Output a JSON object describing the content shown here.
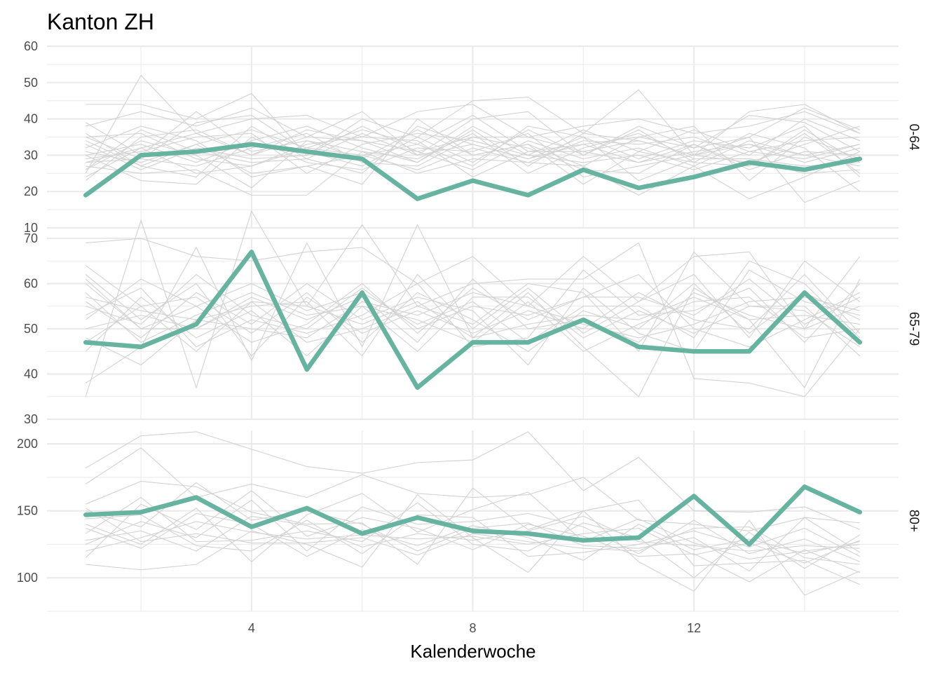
{
  "chart_data": {
    "type": "line",
    "title": "Kanton ZH",
    "xlabel": "Kalenderwoche",
    "ylabel": "",
    "x_ticks": [
      "4",
      "8",
      "12"
    ],
    "x": [
      1,
      2,
      3,
      4,
      5,
      6,
      7,
      8,
      9,
      10,
      11,
      12,
      13,
      14,
      15
    ],
    "xlim": [
      0.3,
      15.7
    ],
    "highlight_color": "#66b3a0",
    "background_color": "#d2d2d2",
    "grid": true,
    "legend": "none",
    "panels": [
      {
        "strip_label": "0-64",
        "ylim": [
          10,
          60
        ],
        "y_ticks": [
          "10",
          "20",
          "30",
          "40",
          "50",
          "60"
        ],
        "series": [
          {
            "values": [
              19,
              30,
              31,
              33,
              31,
              29,
              18,
              23,
              19,
              26,
              21,
              24,
              28,
              26,
              29
            ]
          }
        ],
        "background_series": [
          {
            "values": [
              44,
              44,
              40,
              47,
              30,
              40,
              35,
              45,
              46,
              36,
              48,
              30,
              42,
              44,
              36
            ]
          },
          {
            "values": [
              25,
              52,
              36,
              40,
              41,
              35,
              42,
              44,
              35,
              38,
              40,
              36,
              38,
              42,
              36
            ]
          },
          {
            "values": [
              38,
              42,
              38,
              43,
              35,
              42,
              30,
              40,
              42,
              30,
              38,
              32,
              35,
              43,
              37
            ]
          },
          {
            "values": [
              31,
              28,
              33,
              25,
              27,
              22,
              40,
              30,
              33,
              22,
              31,
              28,
              27,
              36,
              25
            ]
          },
          {
            "values": [
              27,
              25,
              26,
              19,
              19,
              31,
              25,
              29,
              28,
              27,
              19,
              27,
              18,
              24,
              31
            ]
          },
          {
            "values": [
              23,
              35,
              37,
              30,
              37,
              34,
              28,
              37,
              27,
              36,
              34,
              30,
              35,
              17,
              23
            ]
          },
          {
            "values": [
              36,
              27,
              24,
              38,
              29,
              25,
              38,
              33,
              29,
              33,
              35,
              38,
              23,
              35,
              29
            ]
          },
          {
            "values": [
              35,
              36,
              29,
              27,
              32,
              37,
              33,
              27,
              38,
              35,
              29,
              34,
              32,
              38,
              24
            ]
          },
          {
            "values": [
              29,
              31,
              35,
              36,
              25,
              33,
              36,
              34,
              30,
              28,
              30,
              26,
              31,
              29,
              33
            ]
          },
          {
            "values": [
              30,
              23,
              22,
              35,
              28,
              26,
              32,
              31,
              36,
              24,
              27,
              30,
              28,
              33,
              38
            ]
          },
          {
            "values": [
              26,
              34,
              30,
              21,
              34,
              31,
              29,
              36,
              25,
              32,
              36,
              29,
              29,
              27,
              28
            ]
          },
          {
            "values": [
              28,
              29,
              27,
              32,
              36,
              28,
              27,
              35,
              32,
              26,
              25,
              33,
              26,
              31,
              30
            ]
          },
          {
            "values": [
              33,
              26,
              32,
              29,
              30,
              38,
              31,
              26,
              34,
              29,
              32,
              27,
              34,
              30,
              27
            ]
          },
          {
            "values": [
              24,
              32,
              25,
              27,
              33,
              35,
              34,
              24,
              31,
              31,
              28,
              31,
              33,
              28,
              32
            ]
          },
          {
            "values": [
              32,
              38,
              34,
              24,
              27,
              30,
              26,
              32,
              28,
              34,
              33,
              35,
              30,
              40,
              34
            ]
          },
          {
            "values": [
              35,
              29,
              39,
              41,
              31,
              27,
              35,
              28,
              37,
              30,
              37,
              28,
              36,
              32,
              20
            ]
          },
          {
            "values": [
              30,
              33,
              28,
              34,
              38,
              32,
              28,
              38,
              30,
              37,
              31,
              37,
              31,
              34,
              35
            ]
          },
          {
            "values": [
              39,
              30,
              42,
              31,
              34,
              29,
              37,
              30,
              33,
              27,
              35,
              32,
              41,
              39,
              31
            ]
          },
          {
            "values": [
              26,
              37,
              31,
              28,
              29,
              36,
              30,
              33,
              29,
              35,
              23,
              29,
              29,
              25,
              26
            ]
          },
          {
            "values": [
              34,
              27,
              33,
              37,
              32,
              30,
              33,
              41,
              31,
              33,
              28,
              33,
              27,
              37,
              28
            ]
          },
          {
            "values": [
              28,
              32,
              36,
              30,
              35,
              34,
              31,
              35,
              35,
              31,
              34,
              30,
              33,
              30,
              33
            ]
          }
        ]
      },
      {
        "strip_label": "65-79",
        "ylim": [
          30,
          70
        ],
        "y_ticks": [
          "30",
          "40",
          "50",
          "60",
          "70"
        ],
        "series": [
          {
            "values": [
              47,
              46,
              51,
              67,
              41,
              58,
              37,
              47,
              47,
              52,
              46,
              45,
              45,
              58,
              47
            ]
          }
        ],
        "background_series": [
          {
            "values": [
              69,
              70,
              66,
              65,
              67,
              68,
              60,
              66,
              55,
              66,
              56,
              66,
              67,
              50,
              66
            ]
          },
          {
            "values": [
              35,
              74,
              37,
              76,
              55,
              73,
              55,
              60,
              61,
              61,
              69,
              39,
              38,
              35,
              50
            ]
          },
          {
            "values": [
              38,
              46,
              68,
              43,
              69,
              46,
              73,
              48,
              58,
              46,
              35,
              59,
              52,
              37,
              61
            ]
          },
          {
            "values": [
              64,
              55,
              45,
              56,
              47,
              50,
              55,
              51,
              60,
              58,
              45,
              67,
              55,
              55,
              44
            ]
          },
          {
            "values": [
              52,
              61,
              55,
              60,
              54,
              58,
              51,
              56,
              47,
              55,
              55,
              48,
              65,
              60,
              48
            ]
          },
          {
            "values": [
              48,
              42,
              52,
              55,
              56,
              44,
              62,
              50,
              59,
              49,
              56,
              62,
              48,
              65,
              56
            ]
          },
          {
            "values": [
              60,
              50,
              55,
              47,
              51,
              60,
              49,
              59,
              52,
              57,
              62,
              50,
              46,
              52,
              58
            ]
          },
          {
            "values": [
              45,
              57,
              48,
              54,
              44,
              55,
              52,
              47,
              56,
              45,
              51,
              56,
              57,
              48,
              50
            ]
          },
          {
            "values": [
              56,
              48,
              58,
              51,
              60,
              52,
              57,
              54,
              42,
              59,
              49,
              45,
              63,
              56,
              53
            ]
          },
          {
            "values": [
              50,
              53,
              50,
              57,
              52,
              57,
              47,
              61,
              50,
              52,
              47,
              58,
              53,
              50,
              55
            ]
          },
          {
            "values": [
              62,
              52,
              60,
              44,
              57,
              49,
              54,
              49,
              54,
              50,
              58,
              52,
              50,
              62,
              49
            ]
          },
          {
            "values": [
              53,
              59,
              46,
              52,
              49,
              53,
              60,
              46,
              48,
              63,
              53,
              54,
              59,
              47,
              60
            ]
          },
          {
            "values": [
              58,
              47,
              53,
              58,
              53,
              55,
              45,
              57,
              57,
              48,
              54,
              49,
              55,
              54,
              46
            ]
          },
          {
            "values": [
              47,
              55,
              57,
              49,
              58,
              47,
              58,
              52,
              45,
              54,
              50,
              60,
              49,
              58,
              52
            ]
          },
          {
            "values": [
              55,
              51,
              62,
              53,
              50,
              59,
              50,
              55,
              53,
              57,
              57,
              53,
              61,
              51,
              57
            ]
          },
          {
            "values": [
              61,
              50,
              50,
              56,
              55,
              51,
              56,
              48,
              51,
              53,
              52,
              57,
              52,
              53,
              51
            ]
          },
          {
            "values": [
              57,
              54,
              52,
              50,
              48,
              56,
              53,
              58,
              55,
              51,
              48,
              51,
              56,
              57,
              54
            ]
          }
        ]
      },
      {
        "strip_label": "80+",
        "ylim": [
          75,
          210
        ],
        "y_ticks": [
          "100",
          "150",
          "200"
        ],
        "series": [
          {
            "values": [
              147,
              149,
              160,
              138,
              152,
              133,
              145,
              135,
              133,
              128,
              130,
              161,
              125,
              168,
              149
            ]
          }
        ],
        "background_series": [
          {
            "values": [
              182,
              206,
              209,
              196,
              183,
              178,
              186,
              188,
              209,
              165,
              190,
              150,
              149,
              153,
              136
            ]
          },
          {
            "values": [
              170,
              197,
              160,
              170,
              160,
              177,
              163,
              160,
              162,
              175,
              143,
              140,
              135,
              145,
              141
            ]
          },
          {
            "values": [
              110,
              106,
              110,
              135,
              125,
              108,
              162,
              130,
              104,
              150,
              112,
              90,
              143,
              87,
              105
            ]
          },
          {
            "values": [
              155,
              172,
              168,
              149,
              140,
              141,
              110,
              167,
              136,
              150,
              158,
              109,
              111,
              113,
              95
            ]
          },
          {
            "values": [
              140,
              125,
              152,
              112,
              147,
              163,
              134,
              151,
              164,
              127,
              144,
              126,
              114,
              120,
              125
            ]
          },
          {
            "values": [
              125,
              142,
              130,
              158,
              120,
              153,
              140,
              142,
              148,
              138,
              118,
              143,
              118,
              129,
              112
            ]
          },
          {
            "values": [
              133,
              160,
              127,
              128,
              135,
              127,
              156,
              125,
              120,
              141,
              130,
              100,
              134,
              107,
              132
            ]
          },
          {
            "values": [
              150,
              138,
              171,
              143,
              150,
              140,
              120,
              137,
              141,
              124,
              122,
              130,
              105,
              145,
              119
            ]
          },
          {
            "values": [
              120,
              130,
              142,
              134,
              129,
              132,
              129,
              131,
              125,
              133,
              137,
              117,
              126,
              111,
              128
            ]
          },
          {
            "values": [
              144,
              147,
              124,
              120,
              143,
              118,
              147,
              145,
              116,
              119,
              125,
              135,
              123,
              137,
              116
            ]
          },
          {
            "values": [
              115,
              155,
              136,
              165,
              131,
              145,
              137,
              121,
              140,
              131,
              116,
              118,
              97,
              121,
              104
            ]
          },
          {
            "values": [
              137,
              122,
              148,
              140,
              116,
              136,
              124,
              139,
              130,
              113,
              140,
              121,
              129,
              118,
              127
            ]
          },
          {
            "values": [
              128,
              135,
              120,
              146,
              139,
              123,
              133,
              128,
              135,
              146,
              127,
              124,
              120,
              124,
              122
            ]
          },
          {
            "values": [
              152,
              127,
              133,
              126,
              126,
              130,
              117,
              133,
              127,
              122,
              120,
              137,
              138,
              115,
              110
            ]
          }
        ]
      }
    ]
  }
}
